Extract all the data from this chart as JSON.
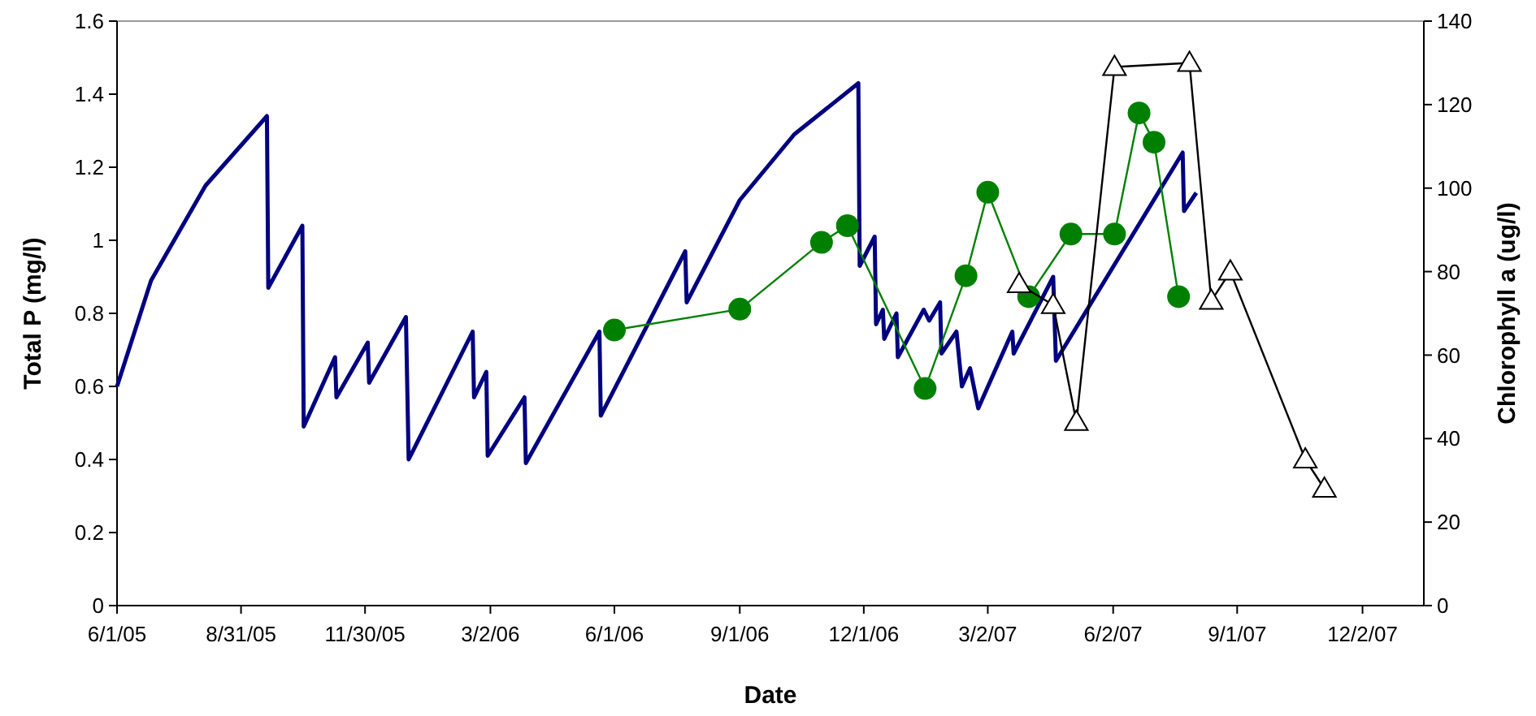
{
  "chart_data": {
    "type": "line",
    "xlabel": "Date",
    "ylabel": "Total P (mg/l)",
    "y2label": "Chlorophyll a (ug/l)",
    "xlim": [
      "2005-06-01",
      "2008-01-16"
    ],
    "xticks": [
      {
        "value": "2005-06-01",
        "label": "6/1/05"
      },
      {
        "value": "2005-08-31",
        "label": "8/31/05"
      },
      {
        "value": "2005-11-30",
        "label": "11/30/05"
      },
      {
        "value": "2006-03-02",
        "label": "3/2/06"
      },
      {
        "value": "2006-06-01",
        "label": "6/1/06"
      },
      {
        "value": "2006-09-01",
        "label": "9/1/06"
      },
      {
        "value": "2006-12-01",
        "label": "12/1/06"
      },
      {
        "value": "2007-03-02",
        "label": "3/2/07"
      },
      {
        "value": "2007-06-02",
        "label": "6/2/07"
      },
      {
        "value": "2007-09-01",
        "label": "9/1/07"
      },
      {
        "value": "2007-12-02",
        "label": "12/2/07"
      }
    ],
    "ylim": [
      0,
      1.6
    ],
    "yticks": [
      0,
      0.2,
      0.4,
      0.6,
      0.8,
      1,
      1.2,
      1.4,
      1.6
    ],
    "y2lim": [
      0,
      140
    ],
    "y2ticks": [
      0,
      20,
      40,
      60,
      80,
      100,
      120,
      140
    ],
    "grid": false,
    "series": [
      {
        "color": "#000080",
        "marker": "none",
        "x": [
          "2005-06-01",
          "2005-06-26",
          "2005-08-05",
          "2005-09-19",
          "2005-09-20",
          "2005-10-15",
          "2005-10-16",
          "2005-11-08",
          "2005-11-09",
          "2005-12-02",
          "2005-12-03",
          "2005-12-30",
          "2006-01-01",
          "2006-02-17",
          "2006-02-18",
          "2006-02-27",
          "2006-02-28",
          "2006-03-27",
          "2006-03-28",
          "2006-05-09",
          "2006-05-21",
          "2006-05-22",
          "2006-07-23",
          "2006-07-24",
          "2006-09-01",
          "2006-10-11",
          "2006-11-27",
          "2006-11-28",
          "2006-12-09",
          "2006-12-10",
          "2006-12-15",
          "2006-12-16",
          "2006-12-25",
          "2006-12-26",
          "2007-01-14",
          "2007-01-18",
          "2007-01-26",
          "2007-01-27",
          "2007-02-07",
          "2007-02-11",
          "2007-02-17",
          "2007-02-23",
          "2007-03-20",
          "2007-03-21",
          "2007-04-19",
          "2007-04-21",
          "2007-07-23",
          "2007-07-24",
          "2007-08-02"
        ],
        "values": [
          0.6,
          0.89,
          1.15,
          1.34,
          0.87,
          1.04,
          0.49,
          0.68,
          0.57,
          0.72,
          0.61,
          0.79,
          0.4,
          0.75,
          0.57,
          0.64,
          0.41,
          0.57,
          0.39,
          0.67,
          0.75,
          0.52,
          0.97,
          0.83,
          1.11,
          1.29,
          1.43,
          0.93,
          1.01,
          0.77,
          0.81,
          0.73,
          0.8,
          0.68,
          0.81,
          0.78,
          0.83,
          0.69,
          0.75,
          0.6,
          0.65,
          0.54,
          0.75,
          0.69,
          0.9,
          0.67,
          1.24,
          1.08,
          1.13
        ]
      },
      {
        "color": "#008000",
        "marker": "circle",
        "axis": "y2",
        "x": [
          "2006-06-01",
          "2006-09-01",
          "2006-10-31",
          "2006-11-19",
          "2007-01-15",
          "2007-02-14",
          "2007-03-02",
          "2007-04-01",
          "2007-05-02",
          "2007-06-03",
          "2007-06-21",
          "2007-07-02",
          "2007-07-20"
        ],
        "values": [
          66,
          71,
          87,
          91,
          52,
          79,
          99,
          74,
          89,
          89,
          118,
          111,
          74
        ]
      },
      {
        "color": "#000000",
        "marker": "triangle",
        "axis": "y2",
        "x": [
          "2007-03-25",
          "2007-04-19",
          "2007-05-06",
          "2007-06-03",
          "2007-07-28",
          "2007-08-13",
          "2007-08-27",
          "2007-10-21",
          "2007-11-04"
        ],
        "values": [
          77,
          72,
          44,
          129,
          130,
          73,
          80,
          35,
          28
        ]
      }
    ]
  }
}
